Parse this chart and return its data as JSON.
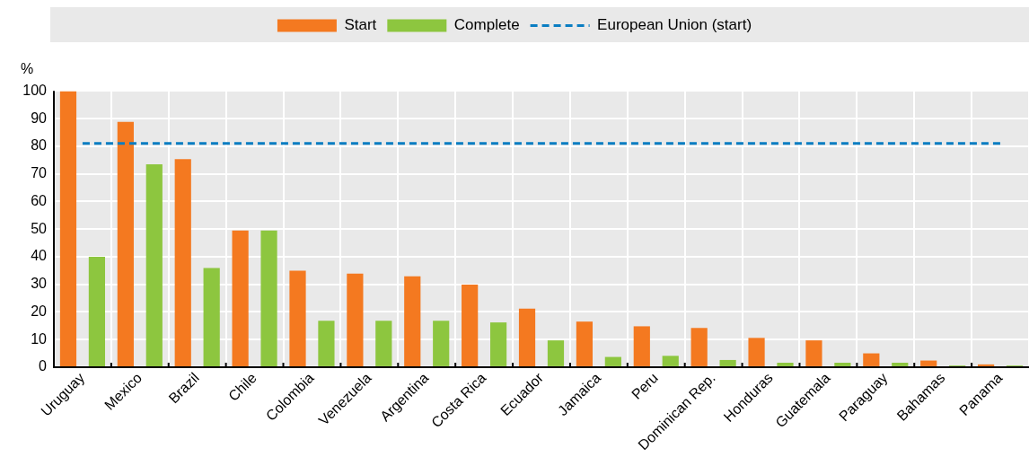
{
  "chart_data": {
    "type": "bar",
    "ylabel": "%",
    "categories": [
      "Uruguay",
      "Mexico",
      "Brazil",
      "Chile",
      "Colombia",
      "Venezuela",
      "Argentina",
      "Costa Rica",
      "Ecuador",
      "Jamaica",
      "Peru",
      "Dominican Rep.",
      "Honduras",
      "Guatemala",
      "Paraguay",
      "Bahamas",
      "Panama"
    ],
    "series": [
      {
        "name": "Start",
        "color": "#f47920",
        "values": [
          100,
          88.8,
          75.3,
          49.5,
          34.9,
          33.9,
          32.9,
          29.9,
          21.2,
          16.5,
          14.8,
          14.2,
          10.6,
          9.7,
          5,
          2.4,
          1
        ]
      },
      {
        "name": "Complete",
        "color": "#8dc63f",
        "values": [
          40,
          73.5,
          35.9,
          49.5,
          16.8,
          16.8,
          16.8,
          16.2,
          9.7,
          3.7,
          4.1,
          2.6,
          1.6,
          1.6,
          1.6,
          0.6,
          0.6
        ]
      }
    ],
    "ref_lines": [
      {
        "axis": "y",
        "value": 81,
        "label": "European Union (start)",
        "color": "#0a7dc2",
        "line_style": "dashed"
      }
    ],
    "ylim": [
      0,
      100
    ],
    "yticks": [
      0,
      10,
      20,
      30,
      40,
      50,
      60,
      70,
      80,
      90,
      100
    ],
    "grid": true,
    "legend": "top"
  }
}
